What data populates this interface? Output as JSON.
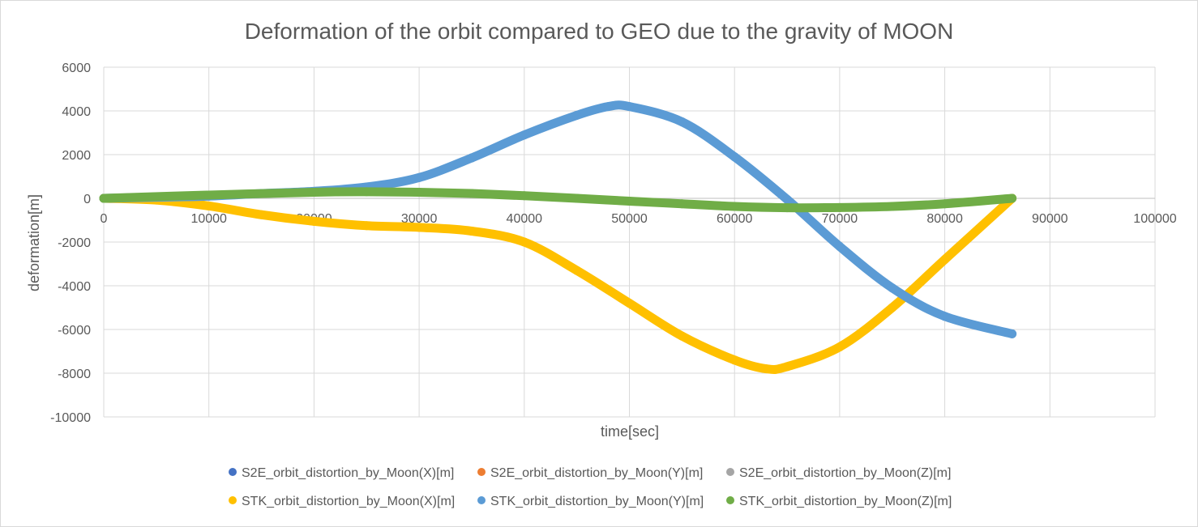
{
  "chart_data": {
    "type": "scatter",
    "title": "Deformation of the orbit compared to GEO due to the gravity of MOON",
    "xlabel": "time[sec]",
    "ylabel": "deformation[m]",
    "xlim": [
      0,
      100000
    ],
    "ylim": [
      -10000,
      6000
    ],
    "x_ticks": [
      0,
      10000,
      20000,
      30000,
      40000,
      50000,
      60000,
      70000,
      80000,
      90000,
      100000
    ],
    "y_ticks": [
      6000,
      4000,
      2000,
      0,
      -2000,
      -4000,
      -6000,
      -8000,
      -10000
    ],
    "grid": true,
    "legend_position": "bottom",
    "series": [
      {
        "name": "S2E_orbit_distortion_by_Moon(X)[m]",
        "color": "#4472C4",
        "x": [],
        "y": []
      },
      {
        "name": "S2E_orbit_distortion_by_Moon(Y)[m]",
        "color": "#ED7D31",
        "x": [],
        "y": []
      },
      {
        "name": "S2E_orbit_distortion_by_Moon(Z)[m]",
        "color": "#A5A5A5",
        "x": [],
        "y": []
      },
      {
        "name": "STK_orbit_distortion_by_Moon(X)[m]",
        "color": "#FFC000",
        "x": [
          0,
          5000,
          10000,
          15000,
          20000,
          25000,
          30000,
          35000,
          40000,
          45000,
          50000,
          55000,
          60000,
          63000,
          65000,
          70000,
          75000,
          80000,
          86400
        ],
        "y": [
          0,
          -80,
          -350,
          -750,
          -1050,
          -1250,
          -1330,
          -1500,
          -2000,
          -3300,
          -4800,
          -6300,
          -7400,
          -7800,
          -7700,
          -6800,
          -5000,
          -2800,
          0
        ]
      },
      {
        "name": "STK_orbit_distortion_by_Moon(Y)[m]",
        "color": "#5B9BD5",
        "x": [
          0,
          5000,
          10000,
          15000,
          20000,
          25000,
          30000,
          35000,
          40000,
          45000,
          48000,
          50000,
          55000,
          60000,
          65000,
          70000,
          75000,
          80000,
          86400
        ],
        "y": [
          0,
          50,
          100,
          220,
          320,
          520,
          950,
          1850,
          2900,
          3800,
          4200,
          4200,
          3500,
          1900,
          -50,
          -2200,
          -4100,
          -5400,
          -6200
        ]
      },
      {
        "name": "STK_orbit_distortion_by_Moon(Z)[m]",
        "color": "#70AD47",
        "x": [
          0,
          10000,
          20000,
          25000,
          30000,
          35000,
          40000,
          45000,
          50000,
          55000,
          60000,
          65000,
          70000,
          75000,
          80000,
          86400
        ],
        "y": [
          0,
          150,
          280,
          300,
          280,
          220,
          120,
          0,
          -130,
          -250,
          -370,
          -430,
          -420,
          -370,
          -250,
          0
        ]
      }
    ]
  }
}
